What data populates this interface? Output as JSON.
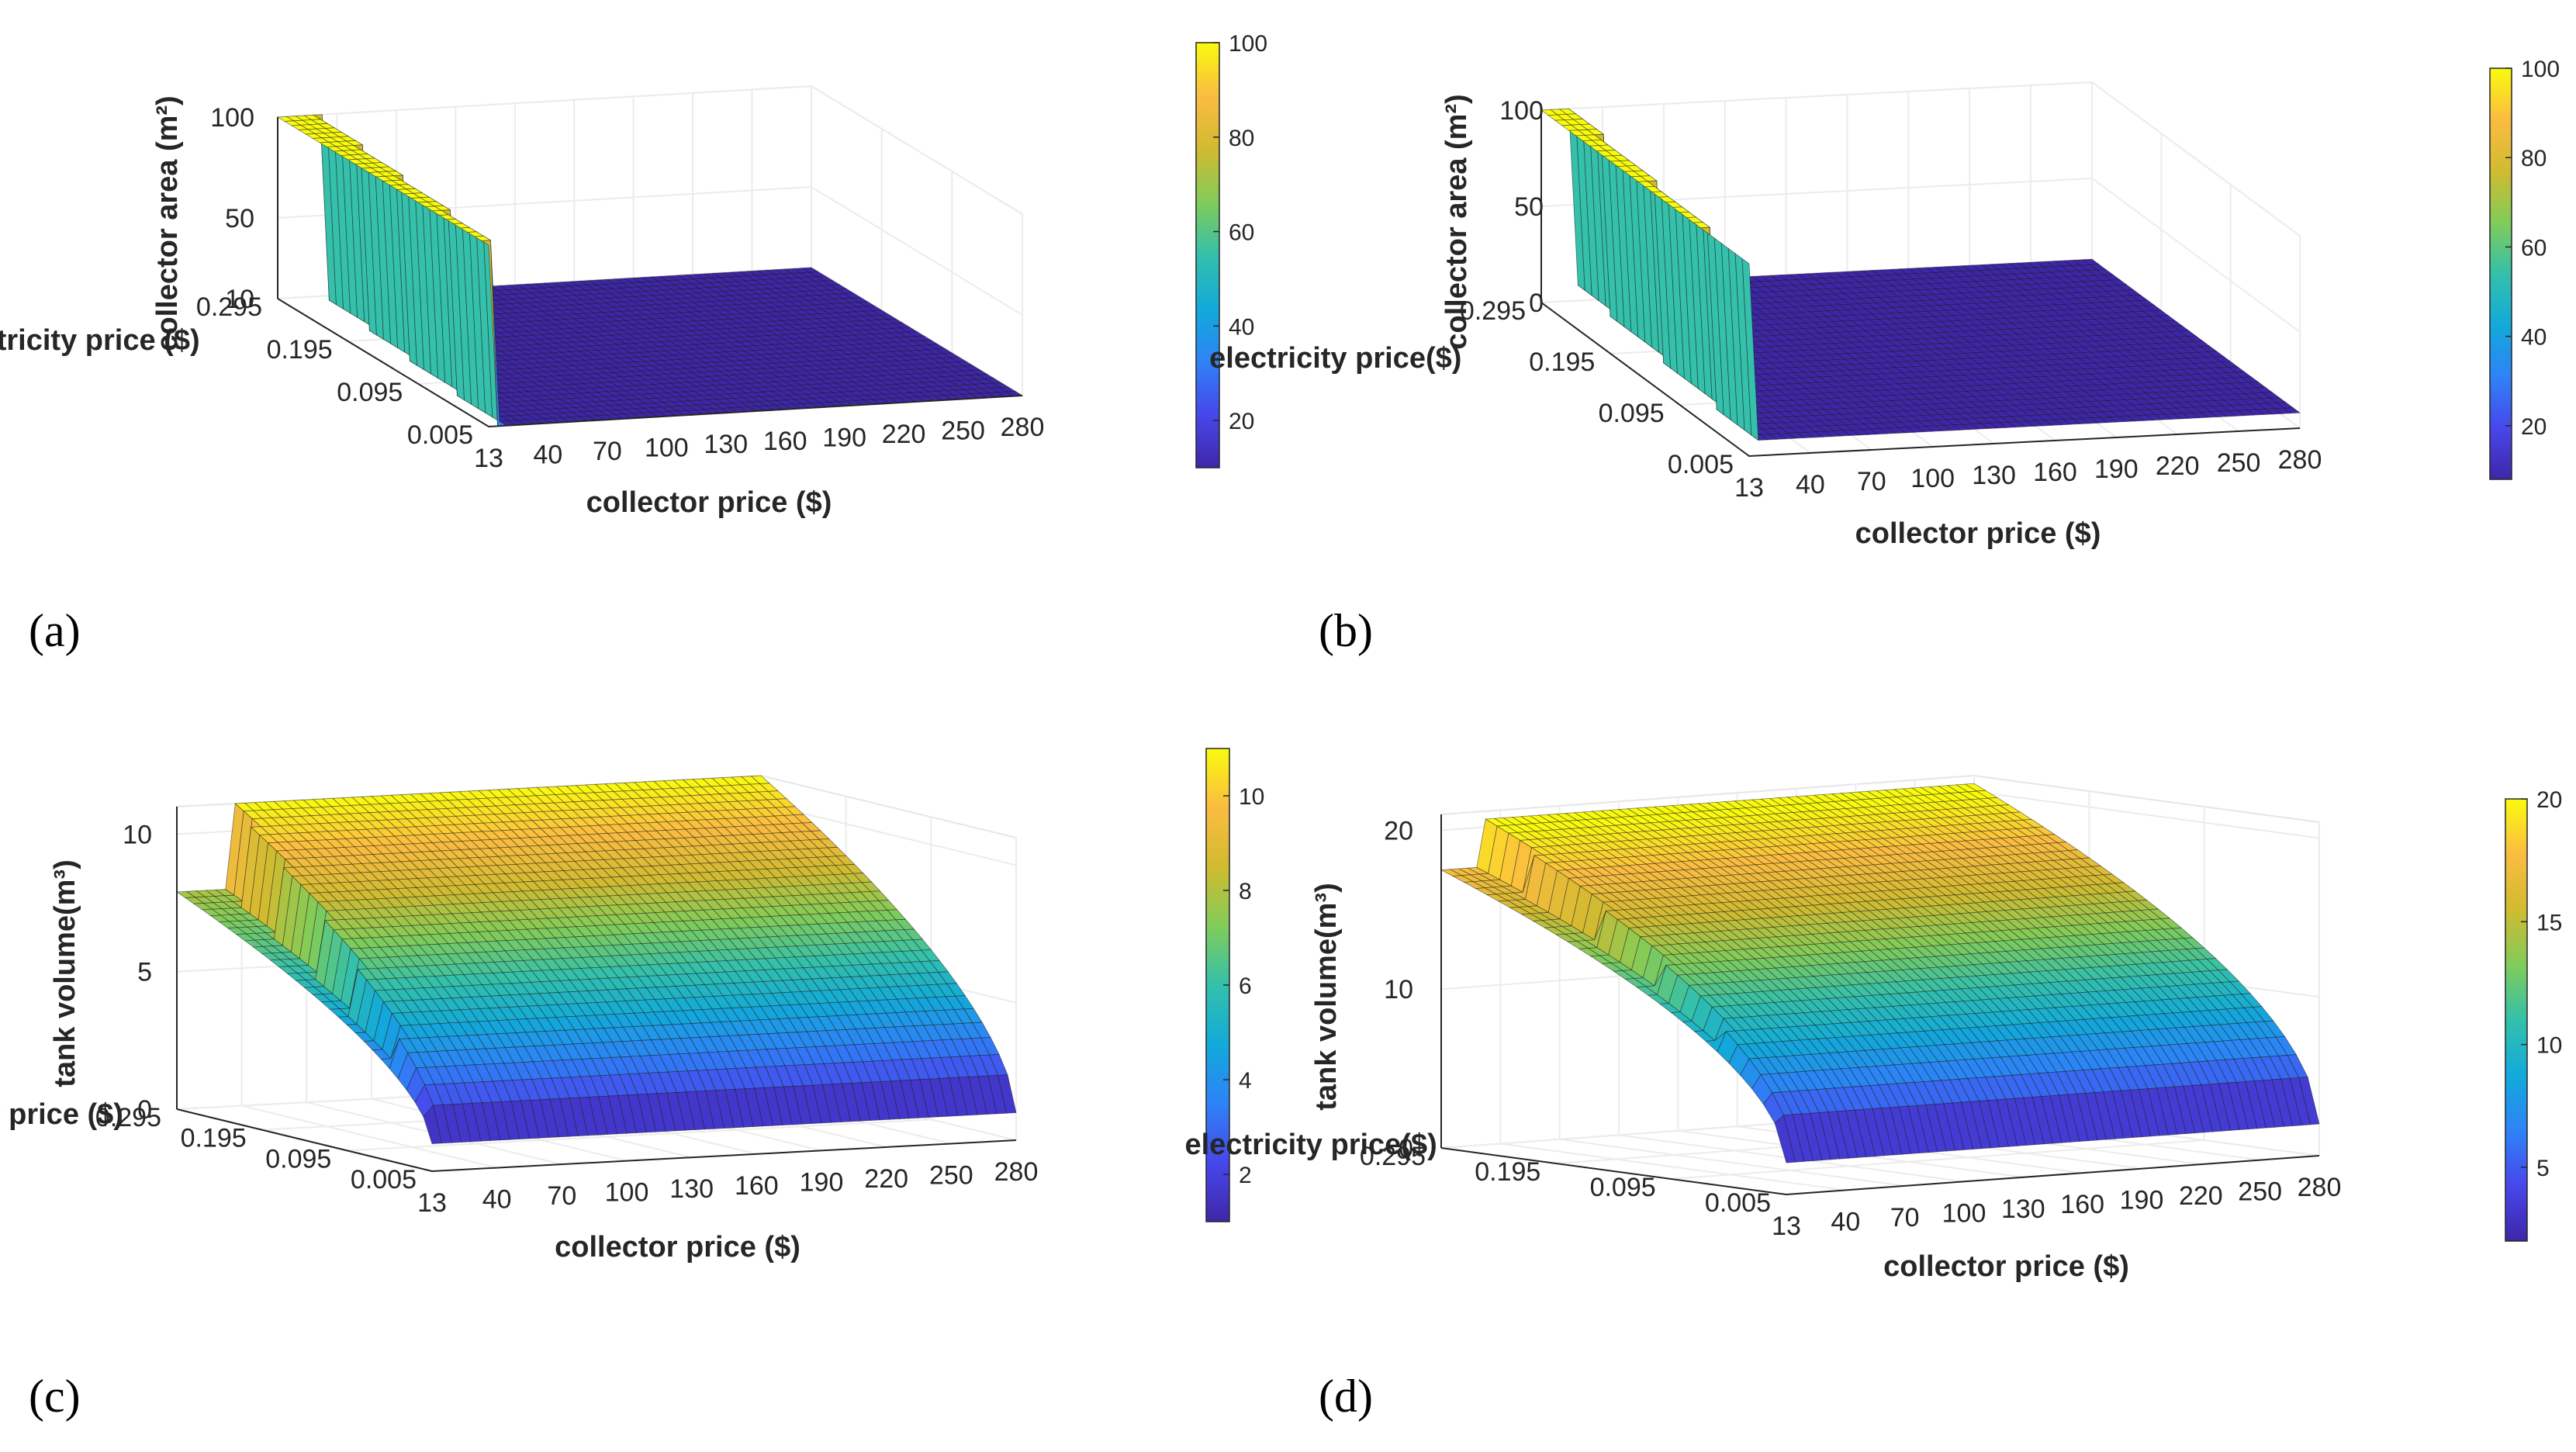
{
  "chart_data": [
    {
      "type": "surface",
      "panel": "(a)",
      "xlabel": "collector price ($)",
      "ylabel": "electricity price ($)",
      "zlabel": "collector area (m²)",
      "x_ticks": [
        "13",
        "40",
        "70",
        "100",
        "130",
        "160",
        "190",
        "220",
        "250",
        "280"
      ],
      "y_ticks": [
        "0.005",
        "0.095",
        "0.195",
        "0.295"
      ],
      "z_ticks": [
        "10",
        "50",
        "100"
      ],
      "zlim": [
        10,
        100
      ],
      "colorbar": {
        "min": 10,
        "max": 100,
        "ticks": [
          "20",
          "40",
          "60",
          "80",
          "100"
        ]
      },
      "x": [
        13,
        280
      ],
      "y": [
        0.005,
        0.295
      ],
      "surface": {
        "high_value": 100,
        "low_value": 10,
        "step_collector_price": [
          13,
          25
        ]
      }
    },
    {
      "type": "surface",
      "panel": "(b)",
      "xlabel": "collector price ($)",
      "ylabel": "electricity price($)",
      "zlabel": "collector area (m²)",
      "x_ticks": [
        "13",
        "40",
        "70",
        "100",
        "130",
        "160",
        "190",
        "220",
        "250",
        "280"
      ],
      "y_ticks": [
        "0.005",
        "0.095",
        "0.195",
        "0.295"
      ],
      "z_ticks": [
        "0",
        "50",
        "100"
      ],
      "zlim": [
        0,
        100
      ],
      "colorbar": {
        "min": 8,
        "max": 100,
        "ticks": [
          "20",
          "40",
          "60",
          "80",
          "100"
        ]
      },
      "x": [
        13,
        280
      ],
      "y": [
        0.005,
        0.295
      ],
      "surface": {
        "high_value": 100,
        "low_value": 8,
        "step_collector_price": [
          13,
          20
        ]
      }
    },
    {
      "type": "surface",
      "panel": "(c)",
      "xlabel": "collector price ($)",
      "ylabel": "electricity price ($)",
      "zlabel": "tank volume(m³)",
      "x_ticks": [
        "13",
        "40",
        "70",
        "100",
        "130",
        "160",
        "190",
        "220",
        "250",
        "280"
      ],
      "y_ticks": [
        "0.005",
        "0.095",
        "0.195",
        "0.295"
      ],
      "z_ticks": [
        "0",
        "5",
        "10"
      ],
      "zlim": [
        0,
        11
      ],
      "colorbar": {
        "min": 1,
        "max": 11,
        "ticks": [
          "2",
          "4",
          "6",
          "8",
          "10"
        ]
      },
      "x": [
        13,
        280
      ],
      "y": [
        0.005,
        0.295
      ],
      "surface": {
        "max_value": 11,
        "min_value": 1,
        "left_edge_max": 7.9
      }
    },
    {
      "type": "surface",
      "panel": "(d)",
      "xlabel": "collector price ($)",
      "ylabel": "electricity price($)",
      "zlabel": "tank volume(m³)",
      "x_ticks": [
        "13",
        "40",
        "70",
        "100",
        "130",
        "160",
        "190",
        "220",
        "250",
        "280"
      ],
      "y_ticks": [
        "0.005",
        "0.095",
        "0.195",
        "0.295"
      ],
      "z_ticks": [
        "0",
        "10",
        "20"
      ],
      "zlim": [
        0,
        21
      ],
      "colorbar": {
        "min": 2,
        "max": 20,
        "ticks": [
          "5",
          "10",
          "15",
          "20"
        ]
      },
      "x": [
        13,
        280
      ],
      "y": [
        0.005,
        0.295
      ],
      "surface": {
        "max_value": 20.5,
        "min_value": 2,
        "left_edge_max": 17.5
      }
    }
  ]
}
